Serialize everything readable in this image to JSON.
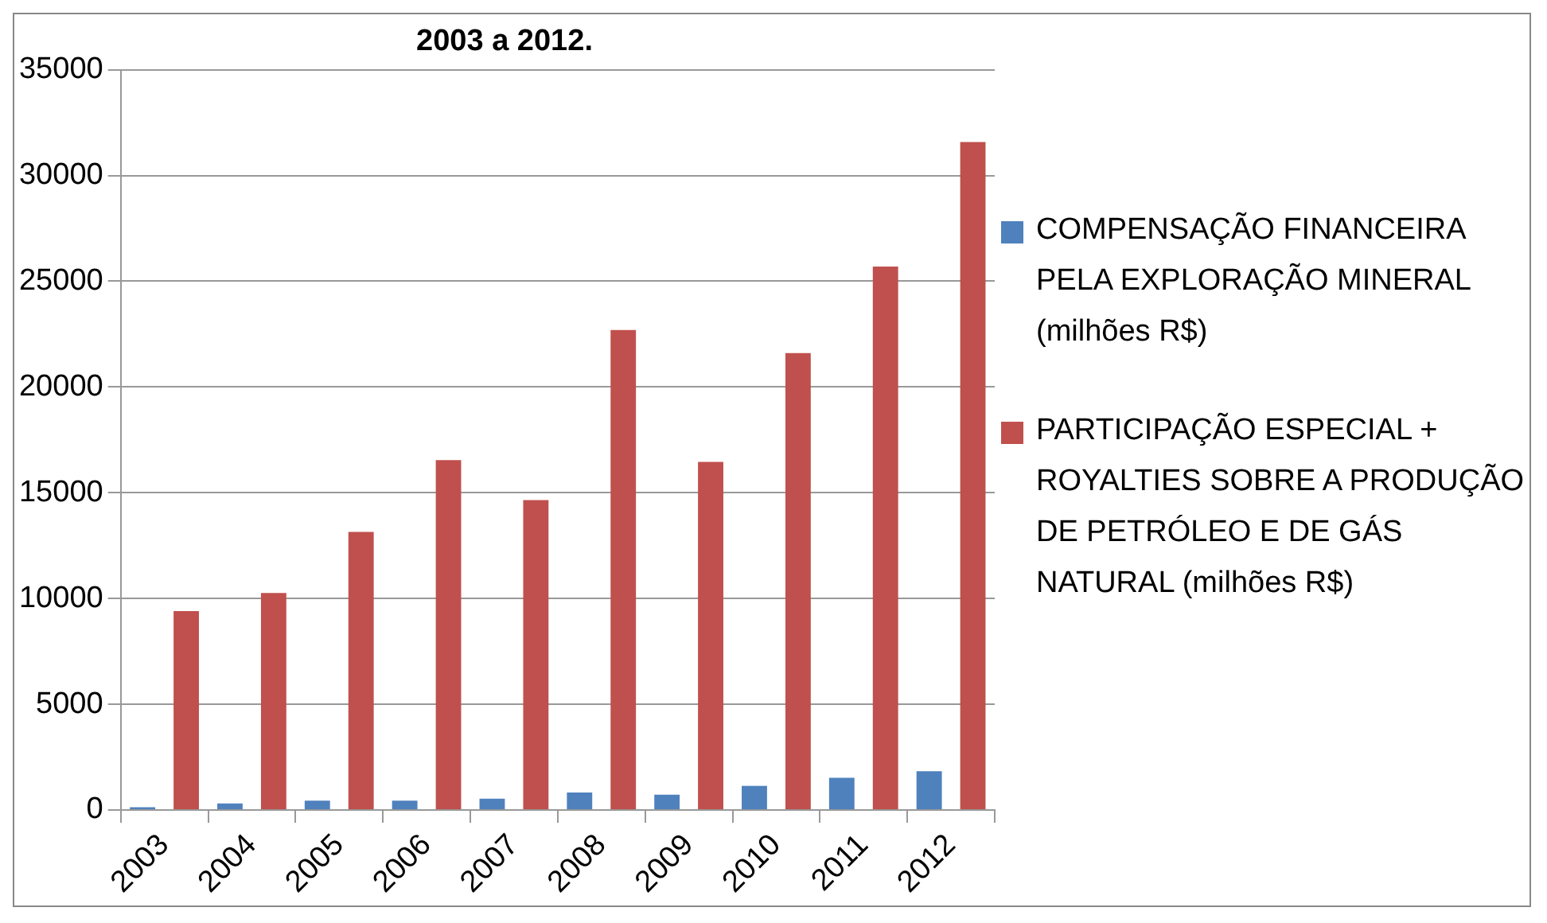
{
  "chart_data": {
    "type": "bar",
    "title": "2003 a 2012.",
    "categories": [
      "2003",
      "2004",
      "2005",
      "2006",
      "2007",
      "2008",
      "2009",
      "2010",
      "2011",
      "2012"
    ],
    "series": [
      {
        "name": "COMPENSAÇÃO FINANCEIRA PELA EXPLORAÇÃO MINERAL (milhões R$)",
        "color": "#4f81bd",
        "values": [
          130,
          310,
          440,
          440,
          540,
          830,
          720,
          1140,
          1520,
          1830
        ]
      },
      {
        "name": "PARTICIPAÇÃO ESPECIAL + ROYALTIES SOBRE A PRODUÇÃO DE PETRÓLEO E DE GÁS NATURAL (milhões R$)",
        "color": "#c0504d",
        "values": [
          9400,
          10260,
          13150,
          16540,
          14650,
          22690,
          16460,
          21600,
          25690,
          31580
        ]
      }
    ],
    "ylim": [
      0,
      35000
    ],
    "yticks": [
      0,
      5000,
      10000,
      15000,
      20000,
      25000,
      30000,
      35000
    ],
    "grid": "y",
    "legend": "right"
  }
}
